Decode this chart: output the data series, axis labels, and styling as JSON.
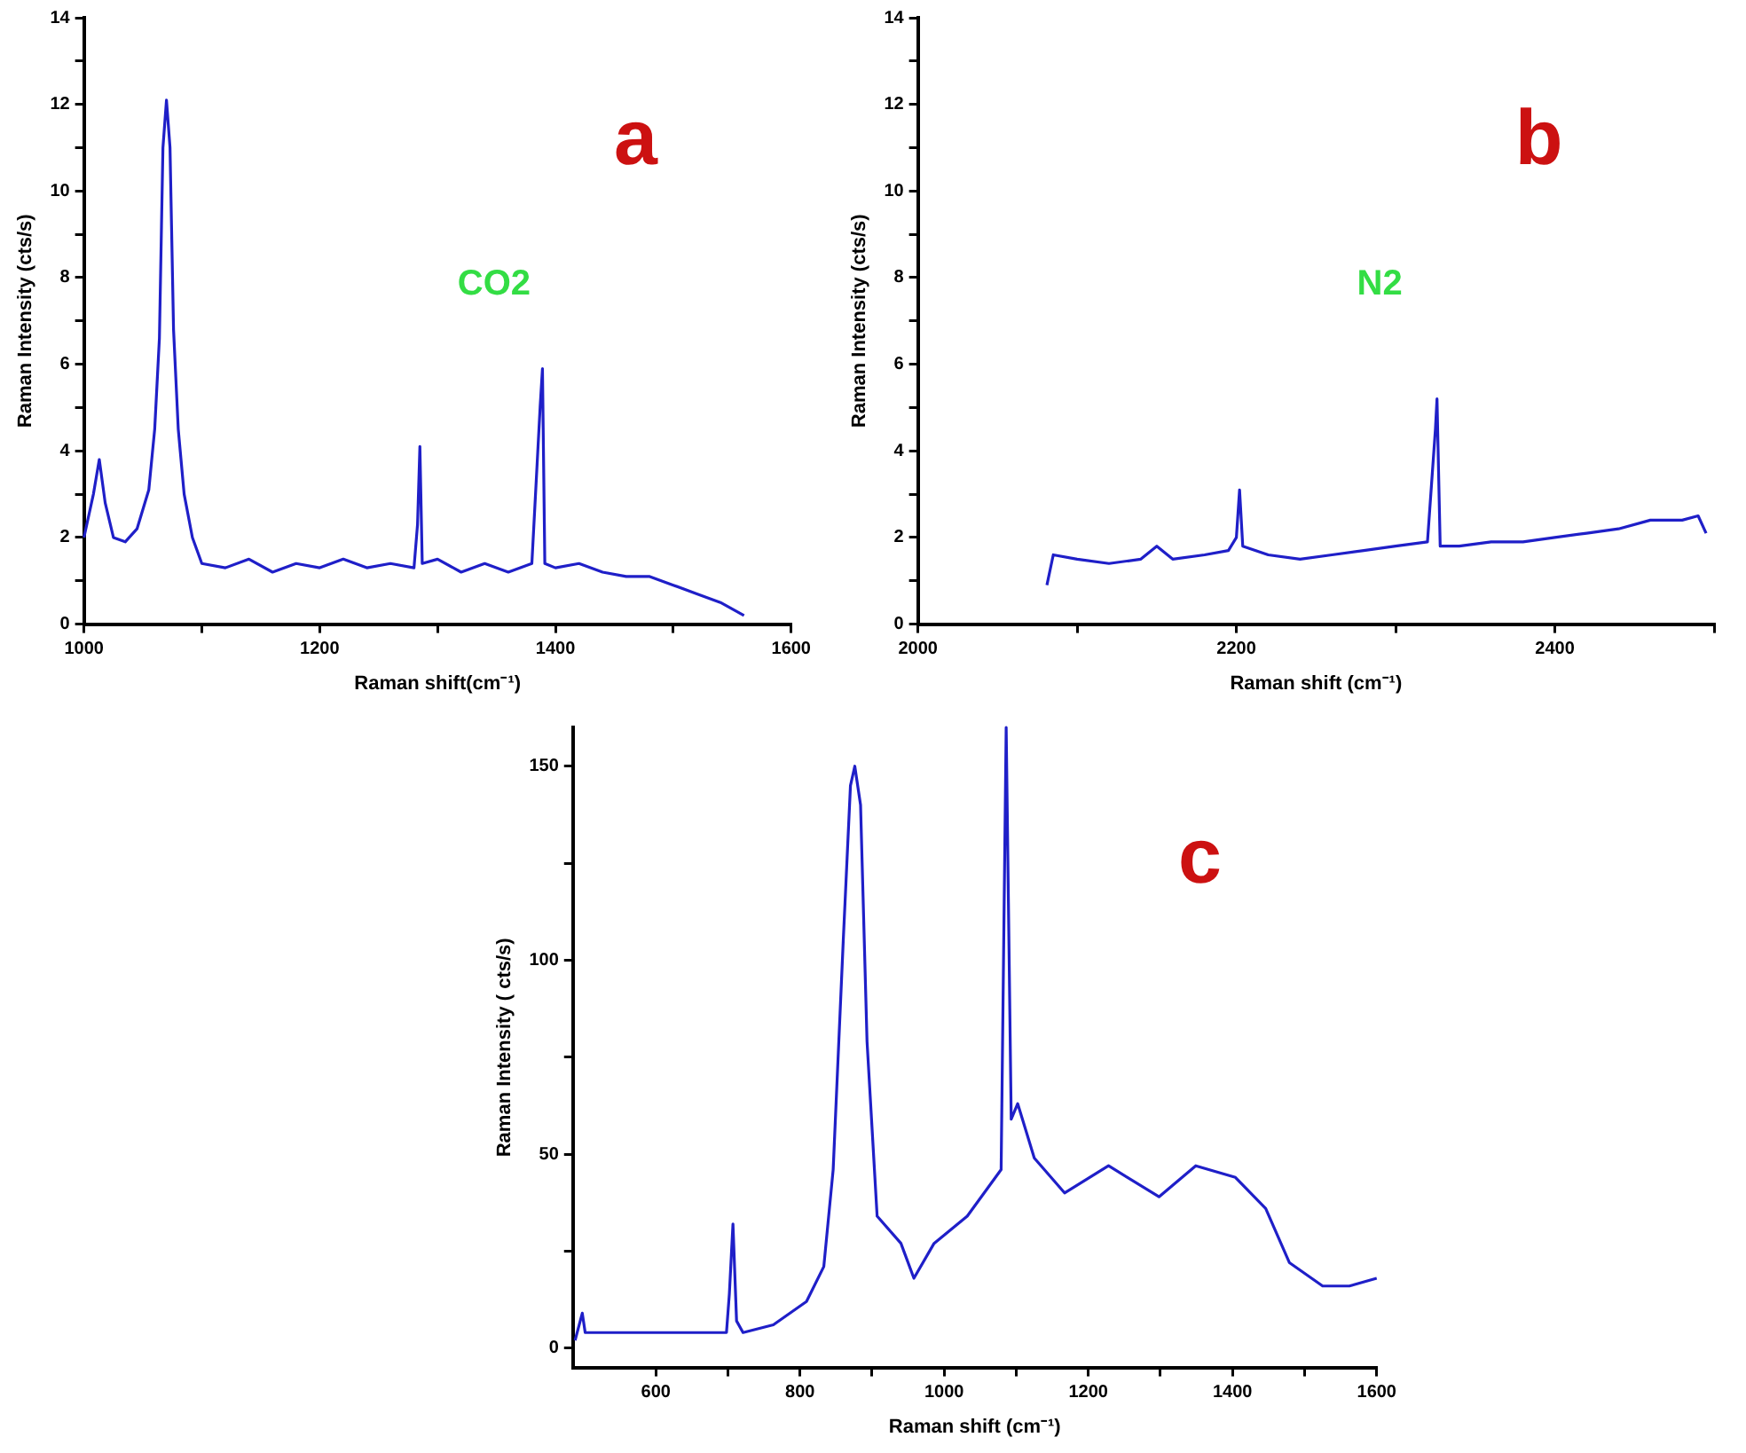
{
  "chart_data": [
    {
      "type": "line",
      "xlabel": "Raman shift(cm⁻¹)",
      "ylabel": "Raman Intensity (cts/s)",
      "annotations": [
        "a",
        "CO2"
      ],
      "xlim": [
        1000,
        1600
      ],
      "xticks": [
        1000,
        {
          "value": 1100,
          "label": null
        },
        1200,
        {
          "value": 1300,
          "label": null
        },
        1400,
        {
          "value": 1500,
          "label": null
        },
        1600
      ],
      "ylim": [
        0,
        14
      ],
      "yticks": [
        0,
        {
          "value": 1,
          "label": null
        },
        2,
        {
          "value": 3,
          "label": null
        },
        4,
        {
          "value": 5,
          "label": null
        },
        6,
        {
          "value": 7,
          "label": null
        },
        8,
        {
          "value": 9,
          "label": null
        },
        10,
        {
          "value": 11,
          "label": null
        },
        12,
        {
          "value": 13,
          "label": null
        },
        14
      ],
      "grid": false,
      "legend": false,
      "marker": "none",
      "line_style": "solid",
      "x": [
        1000,
        1008,
        1013,
        1018,
        1025,
        1035,
        1045,
        1055,
        1060,
        1064,
        1067,
        1070,
        1073,
        1076,
        1080,
        1085,
        1092,
        1100,
        1120,
        1140,
        1160,
        1180,
        1200,
        1220,
        1240,
        1260,
        1280,
        1283,
        1285,
        1287,
        1300,
        1320,
        1340,
        1360,
        1380,
        1387,
        1389,
        1391,
        1400,
        1420,
        1440,
        1460,
        1480,
        1500,
        1520,
        1540,
        1560
      ],
      "series": [
        {
          "color": "#1f1fc8",
          "values": [
            2.0,
            3.0,
            3.8,
            2.8,
            2.0,
            1.9,
            2.2,
            3.1,
            4.5,
            6.6,
            11.0,
            12.1,
            11.0,
            6.8,
            4.5,
            3.0,
            2.0,
            1.4,
            1.3,
            1.5,
            1.2,
            1.4,
            1.3,
            1.5,
            1.3,
            1.4,
            1.3,
            2.3,
            4.1,
            1.4,
            1.5,
            1.2,
            1.4,
            1.2,
            1.4,
            5.0,
            5.9,
            1.4,
            1.3,
            1.4,
            1.2,
            1.1,
            1.1,
            0.9,
            0.7,
            0.5,
            0.2
          ]
        }
      ]
    },
    {
      "type": "line",
      "xlabel": "Raman shift (cm⁻¹)",
      "ylabel": "Raman Intensity (cts/s)",
      "annotations": [
        "b",
        "N2"
      ],
      "xlim": [
        2000,
        2500
      ],
      "xticks": [
        2000,
        {
          "value": 2100,
          "label": null
        },
        2200,
        {
          "value": 2300,
          "label": null
        },
        2400,
        {
          "value": 2500,
          "label": null
        }
      ],
      "ylim": [
        0,
        14
      ],
      "yticks": [
        0,
        {
          "value": 1,
          "label": null
        },
        2,
        {
          "value": 3,
          "label": null
        },
        4,
        {
          "value": 5,
          "label": null
        },
        6,
        {
          "value": 7,
          "label": null
        },
        8,
        {
          "value": 9,
          "label": null
        },
        10,
        {
          "value": 11,
          "label": null
        },
        12,
        {
          "value": 13,
          "label": null
        },
        14
      ],
      "grid": false,
      "legend": false,
      "marker": "none",
      "line_style": "solid",
      "x": [
        2081,
        2085,
        2100,
        2120,
        2140,
        2150,
        2160,
        2180,
        2195,
        2200,
        2202,
        2204,
        2220,
        2240,
        2260,
        2280,
        2300,
        2320,
        2325,
        2326,
        2328,
        2340,
        2360,
        2380,
        2400,
        2420,
        2440,
        2460,
        2480,
        2490,
        2495
      ],
      "series": [
        {
          "color": "#1f1fc8",
          "values": [
            0.9,
            1.6,
            1.5,
            1.4,
            1.5,
            1.8,
            1.5,
            1.6,
            1.7,
            2.0,
            3.1,
            1.8,
            1.6,
            1.5,
            1.6,
            1.7,
            1.8,
            1.9,
            4.5,
            5.2,
            1.8,
            1.8,
            1.9,
            1.9,
            2.0,
            2.1,
            2.2,
            2.4,
            2.4,
            2.5,
            2.1
          ]
        }
      ]
    },
    {
      "type": "line",
      "xlabel": "Raman shift (cm⁻¹)",
      "ylabel": "Raman Intensity ( cts/s)",
      "annotations": [
        "c"
      ],
      "xlim": [
        485,
        1600
      ],
      "xticks": [
        600,
        {
          "value": 700,
          "label": null
        },
        800,
        {
          "value": 900,
          "label": null
        },
        1000,
        {
          "value": 1100,
          "label": null
        },
        1200,
        {
          "value": 1300,
          "label": null
        },
        1400,
        {
          "value": 1500,
          "label": null
        },
        1600
      ],
      "ylim": [
        -5,
        160
      ],
      "yticks": [
        0,
        {
          "value": 25,
          "label": null
        },
        50,
        {
          "value": 75,
          "label": null
        },
        100,
        {
          "value": 125,
          "label": null
        },
        150
      ],
      "grid": false,
      "legend": false,
      "marker": "none",
      "line_style": "solid",
      "x": [
        488,
        498,
        502,
        623,
        698,
        702,
        707,
        712,
        721,
        763,
        809,
        833,
        846,
        860,
        870,
        876,
        884,
        893,
        907,
        940,
        958,
        986,
        1032,
        1079,
        1086,
        1093,
        1102,
        1125,
        1167,
        1228,
        1298,
        1349,
        1404,
        1446,
        1479,
        1525,
        1562,
        1600
      ],
      "series": [
        {
          "color": "#1f1fc8",
          "values": [
            2,
            9,
            4,
            4,
            4,
            14,
            32,
            7,
            4,
            6,
            12,
            21,
            46,
            105,
            145,
            150,
            140,
            79,
            34,
            27,
            18,
            27,
            34,
            46,
            160,
            59,
            63,
            49,
            40,
            47,
            39,
            47,
            44,
            36,
            22,
            16,
            16,
            18
          ]
        }
      ]
    }
  ]
}
